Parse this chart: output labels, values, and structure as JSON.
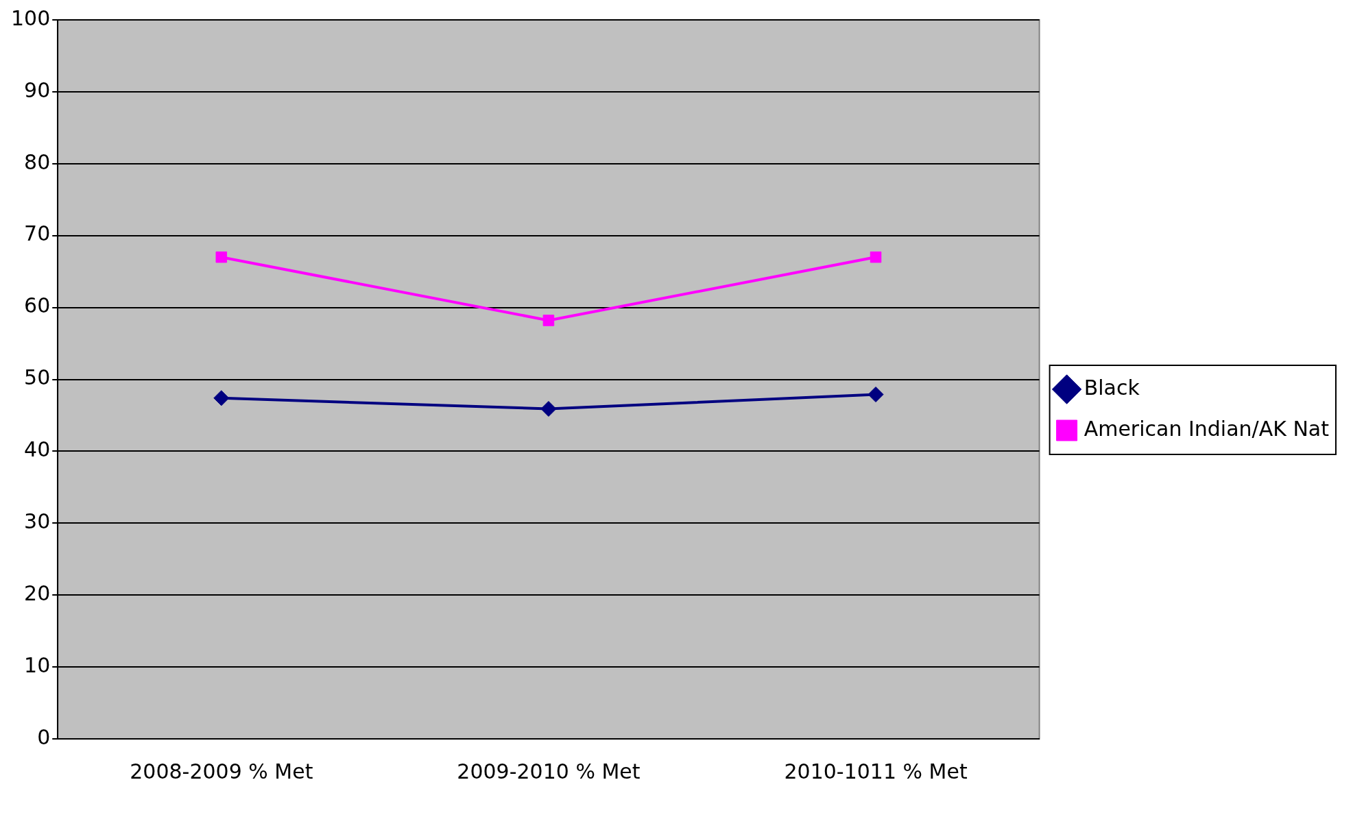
{
  "chart_data": {
    "type": "line",
    "categories": [
      "2008-2009 % Met",
      "2009-2010 % Met",
      "2010-1011 % Met"
    ],
    "series": [
      {
        "name": "Black",
        "color": "#000080",
        "values": [
          47.4,
          45.9,
          47.9
        ],
        "marker": "diamond"
      },
      {
        "name": "American Indian/AK Nat",
        "color": "#ff00ff",
        "values": [
          67.0,
          58.2,
          67.0
        ],
        "marker": "square"
      }
    ],
    "ylim": [
      0,
      100
    ],
    "yticks": [
      0,
      10,
      20,
      30,
      40,
      50,
      60,
      70,
      80,
      90,
      100
    ],
    "grid": "y",
    "legend": "right"
  }
}
